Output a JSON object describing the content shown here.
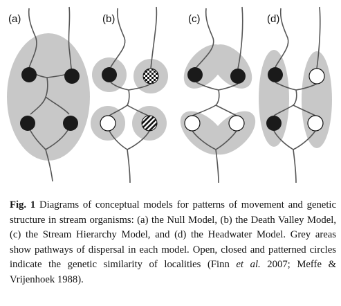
{
  "panels": [
    {
      "label": "(a)",
      "model": "null"
    },
    {
      "label": "(b)",
      "model": "death-valley"
    },
    {
      "label": "(c)",
      "model": "stream-hierarchy"
    },
    {
      "label": "(d)",
      "model": "headwater"
    }
  ],
  "colors": {
    "dispersal_area": "#c8c8c8",
    "stream_line": "#555555",
    "closed_circle": "#1a1a1a",
    "open_circle": "#ffffff"
  },
  "caption": {
    "fig_number": "Fig. 1",
    "text_1": " Diagrams of conceptual models for patterns of movement and genetic structure in stream organisms: (a) the Null Model, (b) the Death Valley Model, (c) the Stream Hierarchy Model, and (d) the Headwater Model. Grey areas show pathways of dispersal in each model. Open, closed and patterned circles indicate the genetic similarity of localities (Finn ",
    "et_al": "et al.",
    "text_2": " 2007; Meffe & Vrijenhoek 1988)."
  }
}
